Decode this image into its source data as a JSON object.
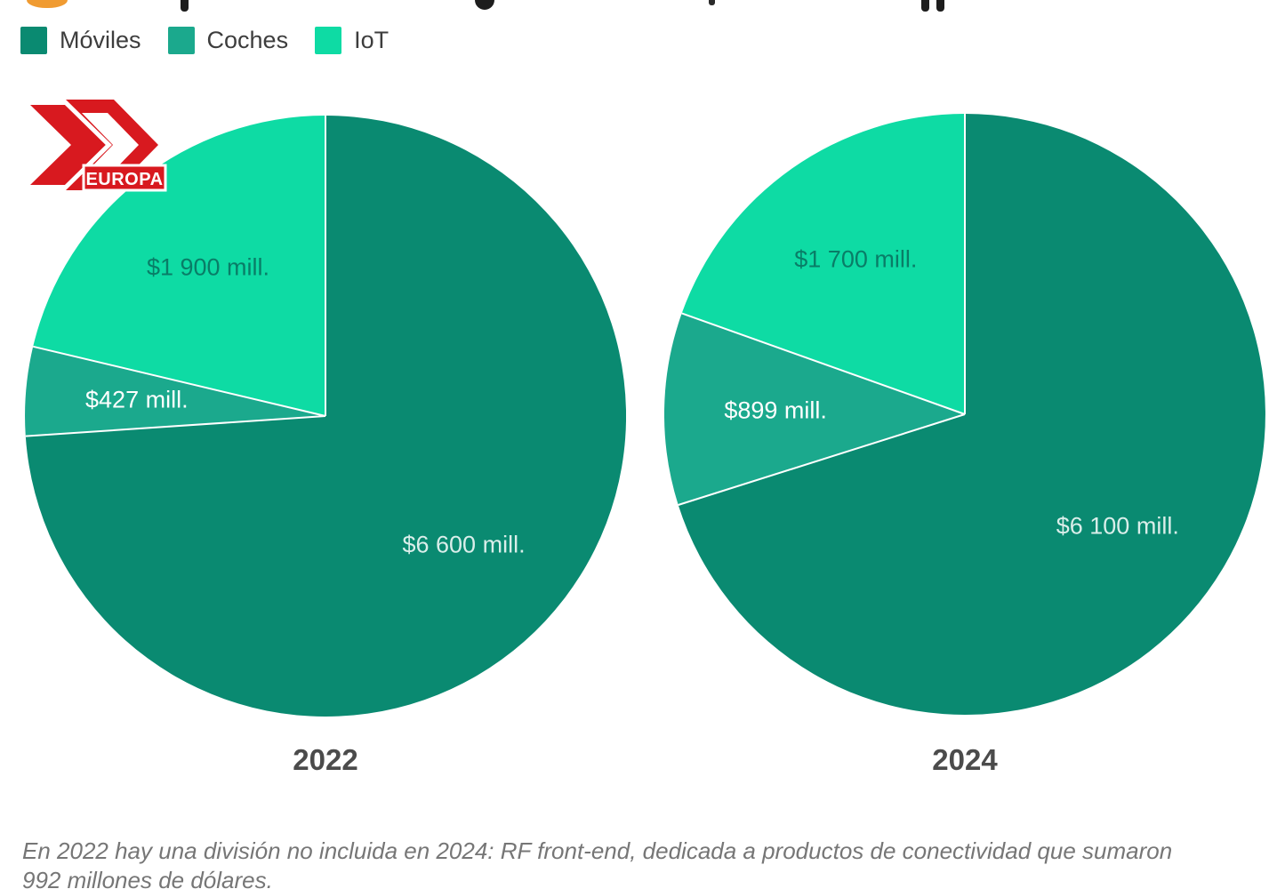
{
  "logo": {
    "text": "EUROPA",
    "brand_color": "#d8191f"
  },
  "legend": {
    "items": [
      {
        "label": "Móviles",
        "color": "#0a8a71"
      },
      {
        "label": "Coches",
        "color": "#1ba98d"
      },
      {
        "label": "IoT",
        "color": "#0edba4"
      }
    ]
  },
  "chart_data": {
    "type": "pie",
    "legend_position": "top-left",
    "unit_suffix": "mill.",
    "series_colors": {
      "Móviles": "#0a8a71",
      "Coches": "#1ba98d",
      "IoT": "#0edba4"
    },
    "pies": [
      {
        "label": "2022",
        "slices": [
          {
            "name": "Móviles",
            "value": 6600,
            "display": "$6 600 mill.",
            "label_color": "rgba(255,255,255,0.85)"
          },
          {
            "name": "Coches",
            "value": 427,
            "display": "$427 mill.",
            "label_color": "#ffffff"
          },
          {
            "name": "IoT",
            "value": 1900,
            "display": "$1 900 mill.",
            "label_color": "#097d67"
          }
        ]
      },
      {
        "label": "2024",
        "slices": [
          {
            "name": "Móviles",
            "value": 6100,
            "display": "$6 100 mill.",
            "label_color": "rgba(255,255,255,0.85)"
          },
          {
            "name": "Coches",
            "value": 899,
            "display": "$899 mill.",
            "label_color": "#ffffff"
          },
          {
            "name": "IoT",
            "value": 1700,
            "display": "$1 700 mill.",
            "label_color": "#097d67"
          }
        ]
      }
    ]
  },
  "footnote": {
    "line1": "En 2022 hay una división no incluida en 2024: RF front-end, dedicada a productos de conectividad que sumaron",
    "line2": "992 millones de dólares."
  }
}
